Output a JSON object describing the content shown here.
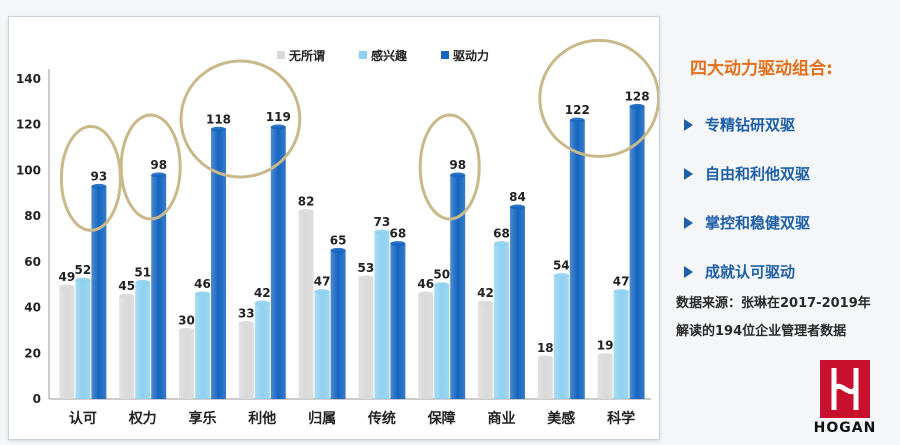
{
  "chart_data": {
    "type": "bar",
    "categories": [
      "认可",
      "权力",
      "享乐",
      "利他",
      "归属",
      "传统",
      "保障",
      "商业",
      "美感",
      "科学"
    ],
    "series": [
      {
        "name": "无所谓",
        "values": [
          49,
          45,
          30,
          33,
          82,
          53,
          46,
          42,
          18,
          19
        ],
        "color": "#d9d9d9"
      },
      {
        "name": "感兴趣",
        "values": [
          52,
          51,
          46,
          42,
          47,
          73,
          50,
          68,
          54,
          47
        ],
        "color": "#8fd0f0"
      },
      {
        "name": "驱动力",
        "values": [
          93,
          98,
          118,
          119,
          65,
          68,
          98,
          84,
          122,
          128
        ],
        "color": "#1565c0"
      }
    ],
    "yticks": [
      0,
      20,
      40,
      60,
      80,
      100,
      120,
      140
    ],
    "ylim": [
      0,
      140
    ],
    "grid": false,
    "legend_position": "top",
    "highlight_circles": [
      "认可",
      "权力",
      "享乐-利他",
      "保障",
      "美感-科学"
    ],
    "highlight_color": "#c9b98a"
  },
  "side": {
    "heading": "四大动力驱动组合:",
    "items": [
      "专精钻研双驱",
      "自由和利他双驱",
      "掌控和稳健双驱",
      "成就认可驱动"
    ],
    "source_line1": "数据来源：张琳在2017-2019年",
    "source_line2": "解读的194位企业管理者数据",
    "logo_text": "HOGAN",
    "accent_color": "#e46f1a",
    "item_color": "#1f5fa8",
    "logo_color": "#c8102e"
  }
}
